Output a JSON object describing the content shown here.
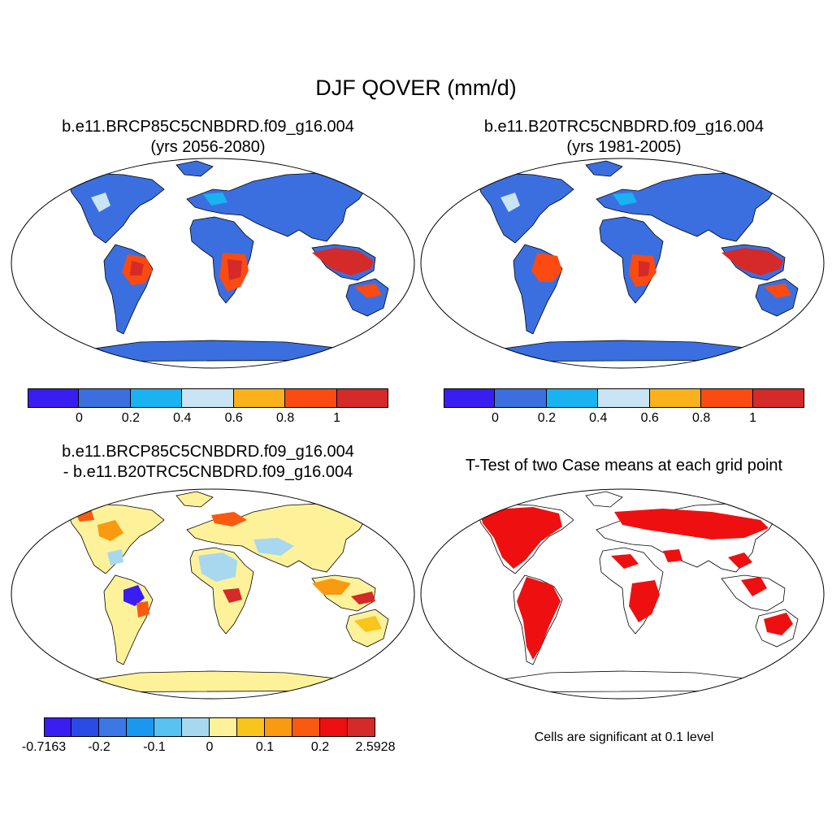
{
  "title": "DJF QOVER (mm/d)",
  "panels": {
    "top_left": {
      "title_line1": "b.e11.BRCP85C5CNBDRD.f09_g16.004",
      "title_line2": "(yrs 2056-2080)"
    },
    "top_right": {
      "title_line1": "b.e11.B20TRC5CNBDRD.f09_g16.004",
      "title_line2": "(yrs 1981-2005)"
    },
    "bottom_left": {
      "title_line1": "b.e11.BRCP85C5CNBDRD.f09_g16.004",
      "title_line2": "- b.e11.B20TRC5CNBDRD.f09_g16.004"
    },
    "bottom_right": {
      "title": "T-Test of two Case means at each grid point",
      "note": "Cells are significant at 0.1 level"
    }
  },
  "colorbars": {
    "absolute": {
      "colors": [
        "#3a1df0",
        "#3b6fe0",
        "#1ab2f0",
        "#c8e4f5",
        "#f9b21c",
        "#fb4a12",
        "#d42a2a"
      ],
      "labels": [
        "0",
        "0.2",
        "0.4",
        "0.6",
        "0.8",
        "1"
      ]
    },
    "difference": {
      "colors": [
        "#3a1df0",
        "#2b4be6",
        "#3b78e6",
        "#1a98f0",
        "#58c2f0",
        "#a8d8f0",
        "#fdf29a",
        "#f9c41c",
        "#f99a10",
        "#f95a10",
        "#ee1010",
        "#d42a2a"
      ],
      "labels": [
        "-0.7163",
        "-0.2",
        "-0.1",
        "0",
        "0.1",
        "0.2",
        "2.5928"
      ]
    }
  },
  "map_colors": {
    "ocean": "#ffffff",
    "land_low": "#3b6fe0",
    "diff_base": "#fdf29a",
    "significant": "#ee1010",
    "coast": "#000000"
  }
}
